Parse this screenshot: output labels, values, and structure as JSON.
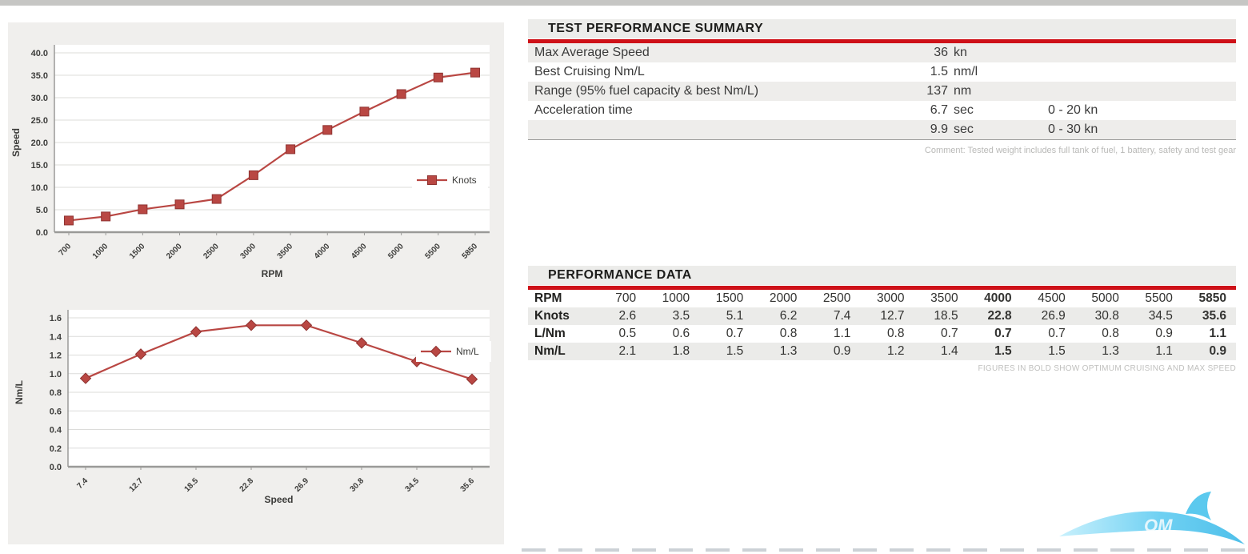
{
  "page": {
    "accent_red": "#ce1118",
    "chart_red": "#b94743",
    "panel_bg": "#f0efed",
    "watermark_blue": "#53c7ef"
  },
  "summary": {
    "title": "TEST PERFORMANCE SUMMARY",
    "rows": [
      {
        "label": "Max Average Speed",
        "value": "36",
        "unit": "kn",
        "extra": ""
      },
      {
        "label": "Best Cruising Nm/L",
        "value": "1.5",
        "unit": "nm/l",
        "extra": ""
      },
      {
        "label": "Range (95% fuel capacity & best Nm/L)",
        "value": "137",
        "unit": "nm",
        "extra": ""
      },
      {
        "label": "Acceleration time",
        "value": "6.7",
        "unit": "sec",
        "extra": "0 - 20 kn"
      },
      {
        "label": "",
        "value": "9.9",
        "unit": "sec",
        "extra": "0 - 30 kn"
      }
    ],
    "comment": "Comment: Tested weight includes full tank of fuel, 1 battery, safety and test gear"
  },
  "performance": {
    "title": "PERFORMANCE DATA",
    "bold_columns": [
      7,
      11
    ],
    "rows": [
      {
        "label": "RPM",
        "values": [
          "700",
          "1000",
          "1500",
          "2000",
          "2500",
          "3000",
          "3500",
          "4000",
          "4500",
          "5000",
          "5500",
          "5850"
        ]
      },
      {
        "label": "Knots",
        "values": [
          "2.6",
          "3.5",
          "5.1",
          "6.2",
          "7.4",
          "12.7",
          "18.5",
          "22.8",
          "26.9",
          "30.8",
          "34.5",
          "35.6"
        ]
      },
      {
        "label": "L/Nm",
        "values": [
          "0.5",
          "0.6",
          "0.7",
          "0.8",
          "1.1",
          "0.8",
          "0.7",
          "0.7",
          "0.7",
          "0.8",
          "0.9",
          "1.1"
        ]
      },
      {
        "label": "Nm/L",
        "values": [
          "2.1",
          "1.8",
          "1.5",
          "1.3",
          "0.9",
          "1.2",
          "1.4",
          "1.5",
          "1.5",
          "1.3",
          "1.1",
          "0.9"
        ]
      }
    ],
    "footnote": "FIGURES IN BOLD SHOW OPTIMUM CRUISING AND MAX SPEED"
  },
  "chart_data": [
    {
      "type": "line",
      "title": "",
      "categories": [
        "700",
        "1000",
        "1500",
        "2000",
        "2500",
        "3000",
        "3500",
        "4000",
        "4500",
        "5000",
        "5500",
        "5850"
      ],
      "series": [
        {
          "name": "Knots",
          "values": [
            2.6,
            3.5,
            5.1,
            6.2,
            7.4,
            12.7,
            18.5,
            22.8,
            26.9,
            30.8,
            34.5,
            35.6
          ]
        }
      ],
      "xlabel": "RPM",
      "ylabel": "Speed",
      "ylim": [
        0,
        40
      ],
      "ytick_step": 5,
      "marker": "square",
      "grid": true,
      "legend_position": "inside-right",
      "line_color": "#b94743"
    },
    {
      "type": "line",
      "title": "",
      "categories": [
        "7.4",
        "12.7",
        "18.5",
        "22.8",
        "26.9",
        "30.8",
        "34.5",
        "35.6"
      ],
      "series": [
        {
          "name": "Nm/L",
          "values": [
            0.95,
            1.21,
            1.45,
            1.52,
            1.52,
            1.33,
            1.13,
            0.94
          ]
        }
      ],
      "xlabel": "Speed",
      "ylabel": "Nm/L",
      "ylim": [
        0,
        1.6
      ],
      "ytick_step": 0.2,
      "marker": "diamond",
      "grid": true,
      "legend_position": "inside-right",
      "line_color": "#b94743"
    }
  ],
  "watermark": {
    "text": "OM"
  }
}
